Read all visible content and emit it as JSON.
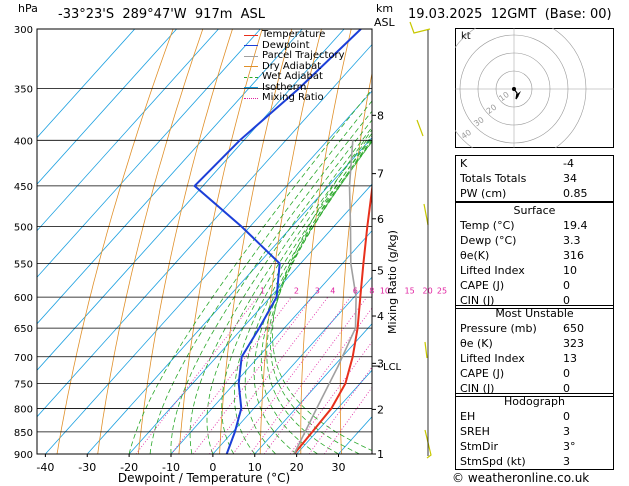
{
  "header": {
    "pressure_unit": "hPa",
    "location": "-33°23'S  289°47'W  917m  ASL",
    "height_unit": "km",
    "height_unit2": "ASL",
    "datetime": "19.03.2025  12GMT  (Base: 00)"
  },
  "legend": {
    "items": [
      {
        "label": "Temperature",
        "color": "#e8301c"
      },
      {
        "label": "Dewpoint",
        "color": "#1c3fd8"
      },
      {
        "label": "Parcel Trajectory",
        "color": "#a0a0a0"
      },
      {
        "label": "Dry Adiabat",
        "color": "#e0902a"
      },
      {
        "label": "Wet Adiabat",
        "color": "#2aa82a"
      },
      {
        "label": "Isotherm",
        "color": "#1ca0e0"
      },
      {
        "label": "Mixing Ratio",
        "color": "#e020a0"
      }
    ]
  },
  "chart_data": {
    "type": "line",
    "title": "",
    "xlabel": "Dewpoint / Temperature (°C)",
    "ylabel": "hPa",
    "xlim": [
      -42,
      38
    ],
    "ylim": [
      900,
      300
    ],
    "x_ticks": [
      "-40",
      "-30",
      "-20",
      "-10",
      "0",
      "10",
      "20",
      "30"
    ],
    "pressure_levels": [
      "300",
      "350",
      "400",
      "450",
      "500",
      "550",
      "600",
      "650",
      "700",
      "750",
      "800",
      "850",
      "900"
    ],
    "km_ticks": [
      {
        "km": "8",
        "p": 375
      },
      {
        "km": "7",
        "p": 436
      },
      {
        "km": "6",
        "p": 490
      },
      {
        "km": "5",
        "p": 560
      },
      {
        "km": "4",
        "p": 630
      },
      {
        "km": "3",
        "p": 712
      },
      {
        "km": "2",
        "p": 802
      },
      {
        "km": "1",
        "p": 900
      }
    ],
    "lcl_label": "LCL",
    "lcl_p": 717,
    "right_axis_label": "Mixing Ratio (g/kg)",
    "mixing_ratio_labels": [
      "1",
      "2",
      "3",
      "4",
      "6",
      "8",
      "10",
      "15",
      "20",
      "25"
    ],
    "mixing_ratio_label_p": 590,
    "series": [
      {
        "name": "Temperature",
        "color": "#e8301c",
        "points": [
          [
            -41,
            300
          ],
          [
            -35.5,
            350
          ],
          [
            -27.5,
            400
          ],
          [
            -19.5,
            450
          ],
          [
            -12,
            500
          ],
          [
            -5,
            550
          ],
          [
            1.5,
            600
          ],
          [
            7.5,
            650
          ],
          [
            12.5,
            700
          ],
          [
            16.5,
            750
          ],
          [
            18.5,
            800
          ],
          [
            19,
            850
          ],
          [
            19.4,
            900
          ]
        ]
      },
      {
        "name": "Dewpoint",
        "color": "#1c3fd8",
        "points": [
          [
            -56,
            300
          ],
          [
            -58,
            350
          ],
          [
            -61,
            400
          ],
          [
            -62,
            450
          ],
          [
            -42,
            500
          ],
          [
            -25,
            550
          ],
          [
            -18.5,
            600
          ],
          [
            -16,
            650
          ],
          [
            -14,
            700
          ],
          [
            -9,
            750
          ],
          [
            -3,
            800
          ],
          [
            0.5,
            850
          ],
          [
            3.3,
            900
          ]
        ]
      },
      {
        "name": "Parcel Trajectory",
        "color": "#a0a0a0",
        "points": [
          [
            19.4,
            900
          ],
          [
            15,
            800
          ],
          [
            11,
            717
          ],
          [
            7,
            650
          ],
          [
            0.5,
            600
          ],
          [
            -8,
            550
          ],
          [
            -16,
            500
          ],
          [
            -25,
            450
          ],
          [
            -34,
            400
          ]
        ]
      }
    ]
  },
  "hodograph": {
    "label": "kt",
    "ring_labels": [
      "10",
      "20",
      "30",
      "40"
    ]
  },
  "indices": {
    "rows": [
      {
        "label": "K",
        "value": "-4"
      },
      {
        "label": "Totals Totals",
        "value": "34"
      },
      {
        "label": "PW (cm)",
        "value": "0.85"
      }
    ]
  },
  "surface": {
    "title": "Surface",
    "rows": [
      {
        "label": "Temp (°C)",
        "value": "19.4"
      },
      {
        "label": "Dewp (°C)",
        "value": "3.3"
      },
      {
        "label": "θe(K)",
        "value": "316"
      },
      {
        "label": "Lifted Index",
        "value": "10"
      },
      {
        "label": "CAPE (J)",
        "value": "0"
      },
      {
        "label": "CIN (J)",
        "value": "0"
      }
    ]
  },
  "most_unstable": {
    "title": "Most Unstable",
    "rows": [
      {
        "label": "Pressure (mb)",
        "value": "650"
      },
      {
        "label": "θe (K)",
        "value": "323"
      },
      {
        "label": "Lifted Index",
        "value": "13"
      },
      {
        "label": "CAPE (J)",
        "value": "0"
      },
      {
        "label": "CIN (J)",
        "value": "0"
      }
    ]
  },
  "hodograph_table": {
    "title": "Hodograph",
    "rows": [
      {
        "label": "EH",
        "value": "0"
      },
      {
        "label": "SREH",
        "value": "3"
      },
      {
        "label": "StmDir",
        "value": "3°"
      },
      {
        "label": "StmSpd (kt)",
        "value": "3"
      }
    ]
  },
  "footer": {
    "credit": "© weatheronline.co.uk"
  }
}
